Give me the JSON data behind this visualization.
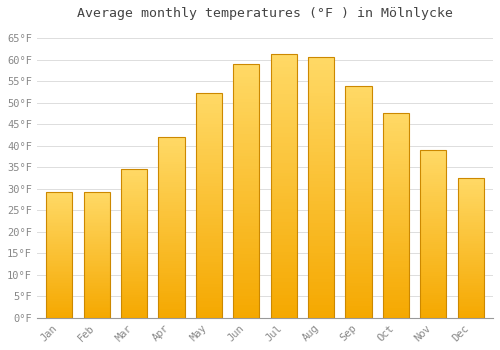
{
  "months": [
    "Jan",
    "Feb",
    "Mar",
    "Apr",
    "May",
    "Jun",
    "Jul",
    "Aug",
    "Sep",
    "Oct",
    "Nov",
    "Dec"
  ],
  "values": [
    29.3,
    29.3,
    34.7,
    42.1,
    52.3,
    59.0,
    61.3,
    60.6,
    53.8,
    47.7,
    39.0,
    32.5
  ],
  "bar_color_bottom": "#F5A800",
  "bar_color_top": "#FFD966",
  "bar_edge_color": "#CC8800",
  "background_color": "#FFFFFF",
  "plot_bg_color": "#FFFFFF",
  "grid_color": "#DDDDDD",
  "title": "Average monthly temperatures (°F ) in Mölnlycke",
  "title_color": "#444444",
  "title_fontsize": 9.5,
  "tick_color": "#888888",
  "tick_fontsize": 7.5,
  "ytick_labels": [
    "0°F",
    "5°F",
    "10°F",
    "15°F",
    "20°F",
    "25°F",
    "30°F",
    "35°F",
    "40°F",
    "45°F",
    "50°F",
    "55°F",
    "60°F",
    "65°F"
  ],
  "ytick_values": [
    0,
    5,
    10,
    15,
    20,
    25,
    30,
    35,
    40,
    45,
    50,
    55,
    60,
    65
  ],
  "ylim": [
    0,
    68
  ],
  "bar_width": 0.7,
  "n_gradient_bands": 80,
  "font_family": "monospace"
}
